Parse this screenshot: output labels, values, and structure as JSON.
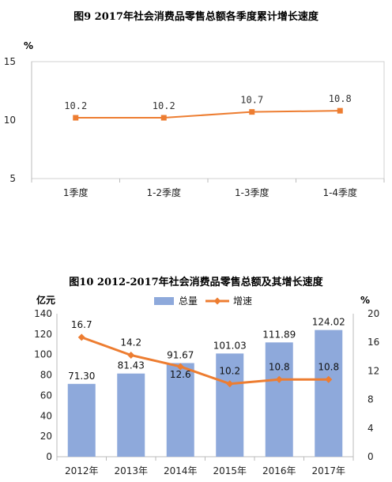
{
  "chart_data": [
    {
      "type": "line",
      "title": "图9 2017年社会消费品零售总额各季度累计增长速度",
      "ylabel": "%",
      "ylim": [
        5,
        15
      ],
      "yticks": [
        "15",
        "10",
        "5"
      ],
      "categories": [
        "1季度",
        "1-2季度",
        "1-3季度",
        "1-4季度"
      ],
      "series": [
        {
          "values": [
            10.2,
            10.2,
            10.7,
            10.8
          ],
          "labels": [
            "10.2",
            "10.2",
            "10.7",
            "10.8"
          ]
        }
      ],
      "grid": false,
      "color": "#ED7D31"
    },
    {
      "type": "bar",
      "title": "图10 2012-2017年社会消费品零售总额及其增长速度",
      "categories": [
        "2012年",
        "2013年",
        "2014年",
        "2015年",
        "2016年",
        "2017年"
      ],
      "ylabel_left": "亿元",
      "ylabel_right": "%",
      "ylim_left": [
        0,
        140
      ],
      "ylim_right": [
        0,
        20
      ],
      "yticks_left": [
        "0",
        "20",
        "40",
        "60",
        "80",
        "100",
        "120",
        "140"
      ],
      "yticks_right": [
        "0",
        "4",
        "8",
        "12",
        "16",
        "20"
      ],
      "series": [
        {
          "name": "总量",
          "type": "bar",
          "axis": "left",
          "color": "#8EA9DB",
          "values": [
            71.3,
            81.43,
            91.67,
            101.03,
            111.89,
            124.02
          ],
          "labels": [
            "71.30",
            "81.43",
            "91.67",
            "101.03",
            "111.89",
            "124.02"
          ]
        },
        {
          "name": "增速",
          "type": "line",
          "axis": "right",
          "color": "#ED7D31",
          "values": [
            16.7,
            14.2,
            12.6,
            10.2,
            10.8,
            10.8
          ],
          "labels": [
            "16.7",
            "14.2",
            "12.6",
            "10.2",
            "10.8",
            "10.8"
          ]
        }
      ],
      "legend_position": "top-center",
      "grid": false
    }
  ]
}
